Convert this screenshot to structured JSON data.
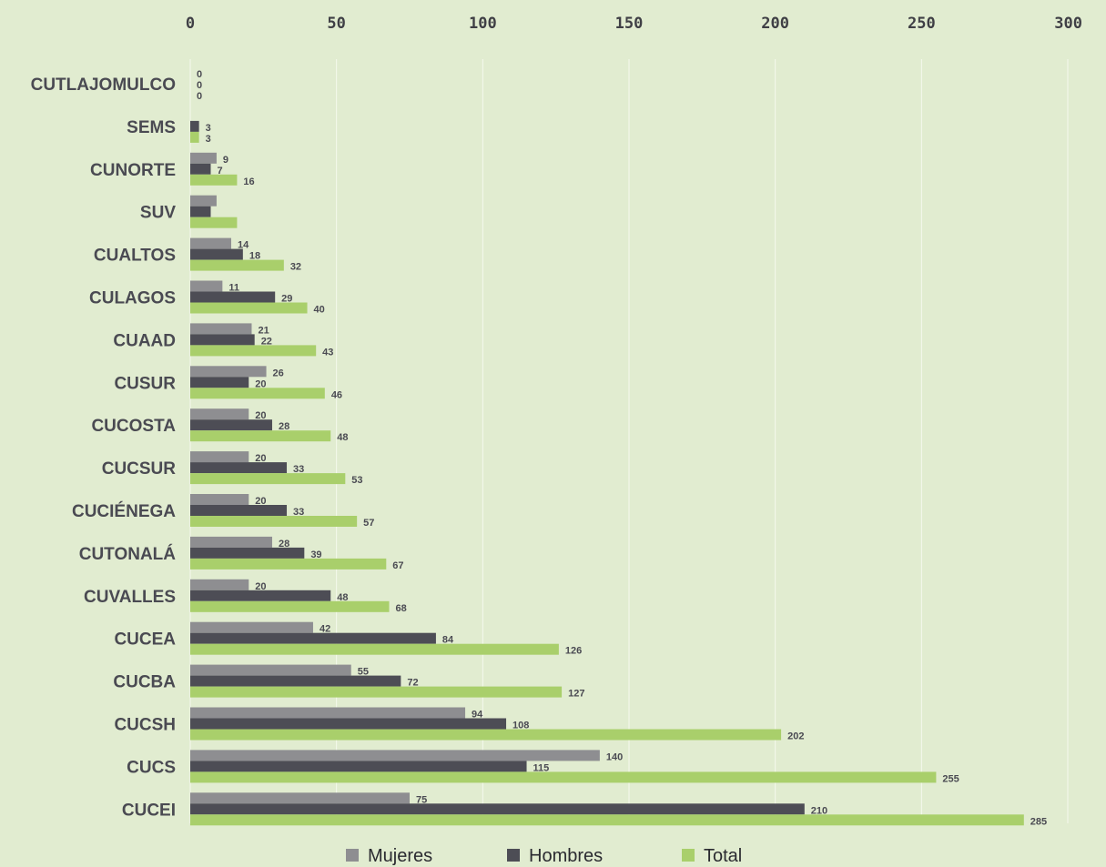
{
  "chart_data": {
    "type": "bar",
    "orientation": "horizontal",
    "categories": [
      "CUTLAJOMULCO",
      "SEMS",
      "CUNORTE",
      "SUV",
      "CUALTOS",
      "CULAGOS",
      "CUAAD",
      "CUSUR",
      "CUCOSTA",
      "CUCSUR",
      "CUCIÉNEGA",
      "CUTONALÁ",
      "CUVALLES",
      "CUCEA",
      "CUCBA",
      "CUCSH",
      "CUCS",
      "CUCEI"
    ],
    "series": [
      {
        "name": "Mujeres",
        "color": "#8e8e91",
        "values": [
          0,
          0,
          9,
          9,
          14,
          11,
          21,
          26,
          20,
          20,
          20,
          28,
          20,
          42,
          55,
          94,
          140,
          75
        ],
        "labels": [
          "0",
          "",
          "9",
          "",
          "14",
          "11",
          "21",
          "26",
          "20",
          "20",
          "20",
          "28",
          "20",
          "42",
          "55",
          "94",
          "140",
          "75"
        ]
      },
      {
        "name": "Hombres",
        "color": "#4d4d55",
        "values": [
          0,
          3,
          7,
          7,
          18,
          29,
          22,
          20,
          28,
          33,
          33,
          39,
          48,
          84,
          72,
          108,
          115,
          210
        ],
        "labels": [
          "0",
          "3",
          "7",
          "",
          "18",
          "29",
          "22",
          "20",
          "28",
          "33",
          "33",
          "39",
          "48",
          "84",
          "72",
          "108",
          "115",
          "210"
        ]
      },
      {
        "name": "Total",
        "color": "#a9cf6b",
        "values": [
          0,
          3,
          16,
          16,
          32,
          40,
          43,
          46,
          48,
          53,
          57,
          67,
          68,
          126,
          127,
          202,
          255,
          285
        ],
        "labels": [
          "0",
          "3",
          "16",
          "",
          "32",
          "40",
          "43",
          "46",
          "48",
          "53",
          "57",
          "67",
          "68",
          "126",
          "127",
          "202",
          "255",
          "285"
        ]
      }
    ],
    "xlim": [
      0,
      300
    ],
    "xticks": [
      0,
      50,
      100,
      150,
      200,
      250,
      300
    ],
    "grid": true,
    "legend": "bottom"
  }
}
